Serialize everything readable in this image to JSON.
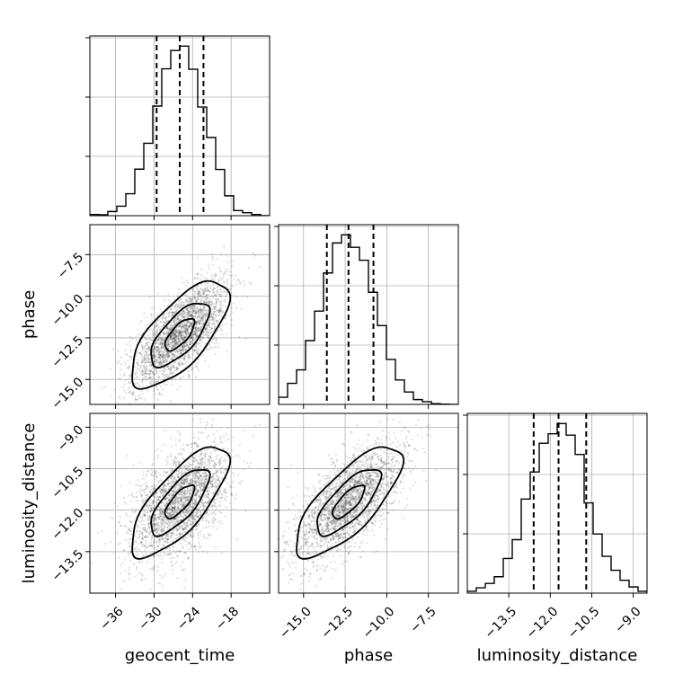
{
  "chart_data": {
    "type": "corner",
    "parameters": [
      {
        "name": "geocent_time",
        "label": "geocent_time",
        "mean": -26.0,
        "std": 3.8,
        "range": [
          -40,
          -12
        ],
        "ticks": [
          -36,
          -30,
          -24,
          -18
        ],
        "tick_labels": [
          "−36",
          "−30",
          "−24",
          "−18"
        ],
        "quantiles": [
          -29.6,
          -26.0,
          -22.3
        ]
      },
      {
        "name": "phase",
        "label": "phase",
        "mean": -12.3,
        "std": 1.6,
        "range": [
          -16.5,
          -5.7
        ],
        "ticks": [
          -15.0,
          -12.5,
          -10.0,
          -7.5
        ],
        "tick_labels": [
          "−15.0",
          "−12.5",
          "−10.0",
          "−7.5"
        ],
        "quantiles": [
          -13.6,
          -12.3,
          -10.8
        ]
      },
      {
        "name": "luminosity_distance",
        "label": "luminosity_distance",
        "mean": -11.7,
        "std": 1.0,
        "range": [
          -15.0,
          -8.5
        ],
        "ticks": [
          -13.5,
          -12.0,
          -10.5,
          -9.0
        ],
        "tick_labels": [
          "−13.5",
          "−12.0",
          "−10.5",
          "−9.0"
        ],
        "quantiles": [
          -12.6,
          -11.7,
          -10.7
        ]
      }
    ],
    "correlations": {
      "geocent_time|phase": 0.7,
      "geocent_time|luminosity_distance": 0.75,
      "phase|luminosity_distance": 0.75
    },
    "histogram_bins": 20,
    "quantile_levels": [
      0.16,
      0.5,
      0.84
    ],
    "grid": true
  }
}
